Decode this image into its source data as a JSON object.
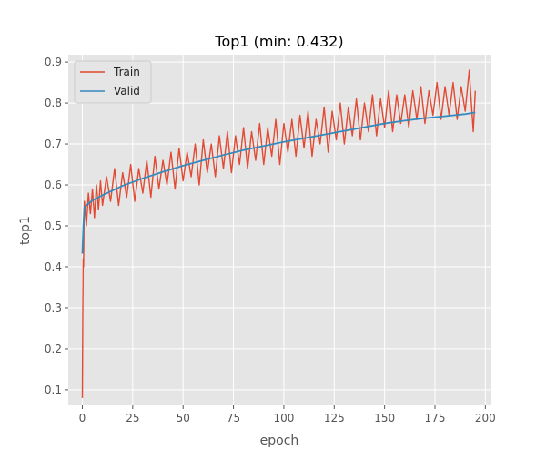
{
  "chart_data": {
    "type": "line",
    "title": "Top1 (min: 0.432)",
    "xlabel": "epoch",
    "ylabel": "top1",
    "xlim": [
      -7,
      203
    ],
    "ylim": [
      0.062,
      0.918
    ],
    "xticks": [
      0,
      25,
      50,
      75,
      100,
      125,
      150,
      175,
      200
    ],
    "yticks": [
      0.1,
      0.2,
      0.3,
      0.4,
      0.5,
      0.6,
      0.7,
      0.8,
      0.9
    ],
    "xtick_labels": [
      "0",
      "25",
      "50",
      "75",
      "100",
      "125",
      "150",
      "175",
      "200"
    ],
    "ytick_labels": [
      "0.1",
      "0.2",
      "0.3",
      "0.4",
      "0.5",
      "0.6",
      "0.7",
      "0.8",
      "0.9"
    ],
    "grid": true,
    "legend_position": "top-left",
    "series": [
      {
        "name": "Train",
        "color": "#e24a33",
        "x": [
          0,
          0.2,
          0.4,
          0.6,
          0.8,
          1,
          2,
          3,
          4,
          5,
          6,
          7,
          8,
          9,
          10,
          12,
          14,
          16,
          18,
          20,
          22,
          24,
          26,
          28,
          30,
          32,
          34,
          36,
          38,
          40,
          42,
          44,
          46,
          48,
          50,
          52,
          54,
          56,
          58,
          60,
          62,
          64,
          66,
          68,
          70,
          72,
          74,
          76,
          78,
          80,
          82,
          84,
          86,
          88,
          90,
          92,
          94,
          96,
          98,
          100,
          102,
          104,
          106,
          108,
          110,
          112,
          114,
          116,
          118,
          120,
          122,
          124,
          126,
          128,
          130,
          132,
          134,
          136,
          138,
          140,
          142,
          144,
          146,
          148,
          150,
          152,
          154,
          156,
          158,
          160,
          162,
          164,
          166,
          168,
          170,
          172,
          174,
          176,
          178,
          180,
          182,
          184,
          186,
          188,
          190,
          192,
          194,
          195
        ],
        "y": [
          0.08,
          0.28,
          0.42,
          0.4,
          0.5,
          0.56,
          0.5,
          0.58,
          0.53,
          0.59,
          0.52,
          0.6,
          0.54,
          0.61,
          0.55,
          0.62,
          0.56,
          0.64,
          0.55,
          0.63,
          0.57,
          0.65,
          0.56,
          0.64,
          0.58,
          0.66,
          0.57,
          0.67,
          0.59,
          0.66,
          0.6,
          0.68,
          0.59,
          0.69,
          0.61,
          0.68,
          0.62,
          0.7,
          0.6,
          0.71,
          0.63,
          0.7,
          0.62,
          0.72,
          0.64,
          0.73,
          0.63,
          0.72,
          0.65,
          0.74,
          0.64,
          0.73,
          0.66,
          0.75,
          0.65,
          0.74,
          0.67,
          0.76,
          0.65,
          0.75,
          0.68,
          0.76,
          0.67,
          0.77,
          0.69,
          0.78,
          0.67,
          0.76,
          0.7,
          0.79,
          0.68,
          0.78,
          0.71,
          0.8,
          0.7,
          0.79,
          0.72,
          0.81,
          0.71,
          0.8,
          0.73,
          0.82,
          0.72,
          0.81,
          0.74,
          0.83,
          0.73,
          0.82,
          0.75,
          0.82,
          0.74,
          0.83,
          0.76,
          0.84,
          0.75,
          0.83,
          0.77,
          0.85,
          0.76,
          0.84,
          0.77,
          0.85,
          0.76,
          0.84,
          0.78,
          0.88,
          0.73,
          0.83
        ]
      },
      {
        "name": "Valid",
        "color": "#348abd",
        "x": [
          0,
          0.5,
          1,
          2,
          5,
          10,
          20,
          30,
          40,
          50,
          60,
          70,
          80,
          90,
          100,
          110,
          120,
          130,
          140,
          150,
          160,
          170,
          180,
          190,
          195
        ],
        "y": [
          0.432,
          0.5,
          0.545,
          0.55,
          0.562,
          0.575,
          0.598,
          0.616,
          0.632,
          0.647,
          0.66,
          0.673,
          0.685,
          0.695,
          0.705,
          0.714,
          0.723,
          0.732,
          0.741,
          0.75,
          0.757,
          0.763,
          0.768,
          0.773,
          0.777
        ]
      }
    ]
  }
}
